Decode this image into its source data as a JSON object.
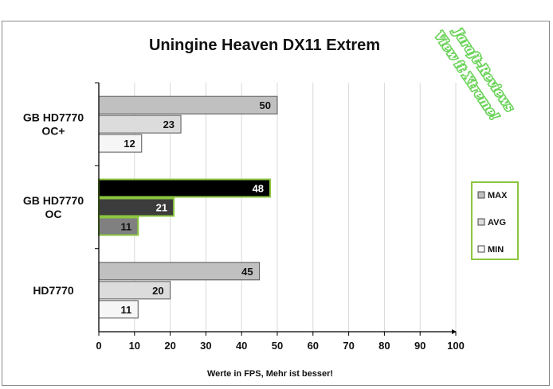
{
  "chart_data": {
    "type": "bar",
    "orientation": "horizontal",
    "title": "Uningine Heaven DX11 Extrem",
    "xlabel": "Werte in FPS, Mehr ist besser!",
    "ylabel": "",
    "xlim": [
      0,
      100
    ],
    "xticks": [
      0,
      10,
      20,
      30,
      40,
      50,
      60,
      70,
      80,
      90,
      100
    ],
    "grid": "vertical",
    "legend_position": "right",
    "categories": [
      {
        "label_lines": [
          "GB HD7770",
          "OC+"
        ],
        "highlight": false
      },
      {
        "label_lines": [
          "GB HD7770",
          "OC"
        ],
        "highlight": true
      },
      {
        "label_lines": [
          "HD7770"
        ],
        "highlight": false
      }
    ],
    "series": [
      {
        "name": "MAX",
        "values": [
          50,
          48,
          45
        ],
        "color": "#c0c0c0",
        "highlight_color": "#000000"
      },
      {
        "name": "AVG",
        "values": [
          23,
          21,
          20
        ],
        "color": "#dcdcdc",
        "highlight_color": "#3c3c3c"
      },
      {
        "name": "MIN",
        "values": [
          12,
          11,
          11
        ],
        "color": "#f6f6f6",
        "highlight_color": "#808080"
      }
    ],
    "highlight_border_color": "#8cc63f"
  },
  "watermark": {
    "lines": [
      "Jaraft-Reviews",
      "View it Xtreme!"
    ]
  }
}
